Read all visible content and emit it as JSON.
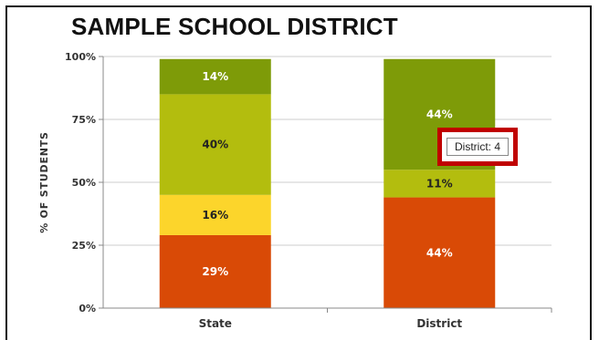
{
  "chart_data": {
    "type": "bar",
    "stacked": true,
    "title": "SAMPLE SCHOOL DISTRICT",
    "ylabel": "% OF STUDENTS",
    "xlabel": "",
    "ylim": [
      0,
      100
    ],
    "yticks": [
      {
        "value": 0,
        "label": "0%"
      },
      {
        "value": 25,
        "label": "25%"
      },
      {
        "value": 50,
        "label": "50%"
      },
      {
        "value": 75,
        "label": "75%"
      },
      {
        "value": 100,
        "label": "100%"
      }
    ],
    "grid": true,
    "legend": "none",
    "categories": [
      "State",
      "District"
    ],
    "series": [
      {
        "color": "#d94a06",
        "label_color": "#ffffff",
        "values": [
          29,
          44
        ],
        "labels": [
          "29%",
          "44%"
        ]
      },
      {
        "color": "#fcd52b",
        "label_color": "#222222",
        "values": [
          16,
          0
        ],
        "labels": [
          "16%",
          ""
        ]
      },
      {
        "color": "#b3bd0e",
        "label_color": "#222222",
        "values": [
          40,
          11
        ],
        "labels": [
          "40%",
          "11%"
        ]
      },
      {
        "color": "#7e9b08",
        "label_color": "#ffffff",
        "values": [
          14,
          44
        ],
        "labels": [
          "14%",
          "44%"
        ]
      }
    ],
    "tooltip": {
      "text": "District: 4"
    }
  }
}
